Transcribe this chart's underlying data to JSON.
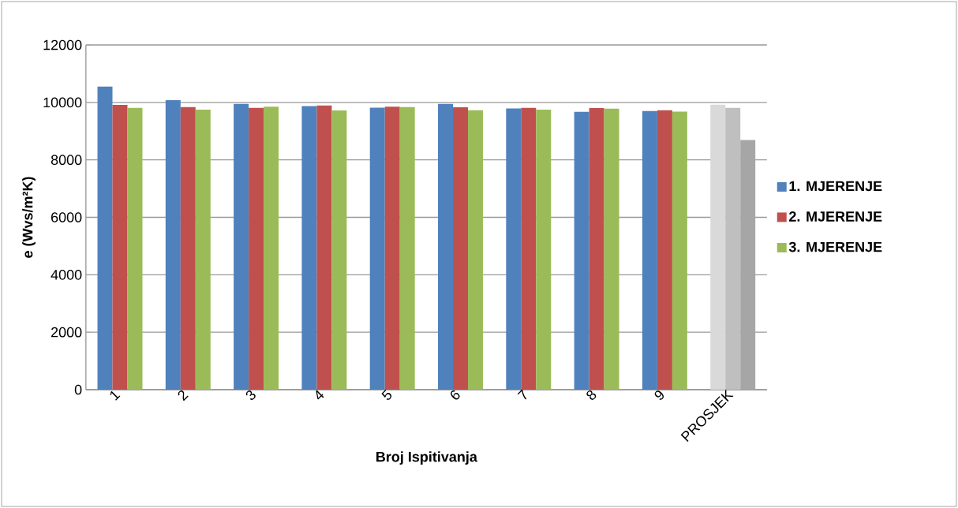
{
  "chart_data": {
    "type": "bar",
    "xlabel": "Broj Ispitivanja",
    "ylabel": "e (Wvs/m²K)",
    "categories": [
      "1",
      "2",
      "3",
      "4",
      "5",
      "6",
      "7",
      "8",
      "9",
      "PROSJEK"
    ],
    "series": [
      {
        "name": "1. MJERENJE",
        "color": "#4f81bd",
        "values": [
          10550,
          10080,
          9950,
          9870,
          9820,
          9950,
          9790,
          9670,
          9700,
          9920
        ],
        "colors": [
          "#4f81bd",
          "#4f81bd",
          "#4f81bd",
          "#4f81bd",
          "#4f81bd",
          "#4f81bd",
          "#4f81bd",
          "#4f81bd",
          "#4f81bd",
          "#d9d9d9"
        ]
      },
      {
        "name": "2. MJERENJE",
        "color": "#c0504d",
        "values": [
          9910,
          9840,
          9810,
          9890,
          9850,
          9830,
          9810,
          9800,
          9730,
          9810
        ],
        "colors": [
          "#c0504d",
          "#c0504d",
          "#c0504d",
          "#c0504d",
          "#c0504d",
          "#c0504d",
          "#c0504d",
          "#c0504d",
          "#c0504d",
          "#bfbfbf"
        ]
      },
      {
        "name": "3. MJERENJE",
        "color": "#9bbb59",
        "values": [
          9810,
          9750,
          9850,
          9720,
          9840,
          9730,
          9750,
          9780,
          9680,
          8690
        ],
        "colors": [
          "#9bbb59",
          "#9bbb59",
          "#9bbb59",
          "#9bbb59",
          "#9bbb59",
          "#9bbb59",
          "#9bbb59",
          "#9bbb59",
          "#9bbb59",
          "#a6a6a6"
        ]
      }
    ],
    "ylim": [
      0,
      12000
    ],
    "yticks": [
      0,
      2000,
      4000,
      6000,
      8000,
      10000,
      12000
    ],
    "grid": "y",
    "legend": "right"
  }
}
